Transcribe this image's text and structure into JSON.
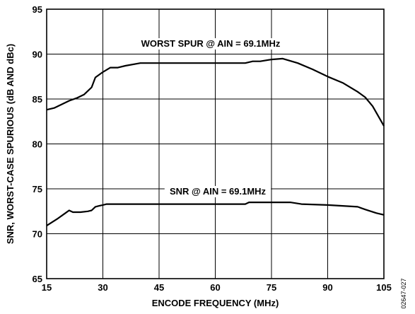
{
  "chart_data": {
    "type": "line",
    "title": "",
    "xlabel": "ENCODE FREQUENCY (MHz)",
    "ylabel": "SNR, WORST-CASE SPURIOUS (dB AND dBc)",
    "xlim": [
      15,
      105
    ],
    "ylim": [
      65,
      95
    ],
    "x_ticks": [
      15,
      30,
      45,
      60,
      75,
      90,
      105
    ],
    "y_ticks": [
      65,
      70,
      75,
      80,
      85,
      90,
      95
    ],
    "grid": true,
    "series": [
      {
        "name": "WORST SPUR @ AIN = 69.1MHz",
        "x": [
          15,
          17,
          19,
          21,
          23,
          25,
          27,
          28,
          30,
          32,
          34,
          36,
          40,
          45,
          50,
          60,
          68,
          70,
          72,
          75,
          78,
          82,
          86,
          90,
          94,
          98,
          100,
          102,
          105
        ],
        "y": [
          83.8,
          84.0,
          84.4,
          84.8,
          85.1,
          85.5,
          86.3,
          87.4,
          88.0,
          88.5,
          88.5,
          88.7,
          89.0,
          89.0,
          89.0,
          89.0,
          89.0,
          89.2,
          89.2,
          89.4,
          89.5,
          89.0,
          88.3,
          87.5,
          86.8,
          85.8,
          85.2,
          84.2,
          82.0
        ]
      },
      {
        "name": "SNR @ AIN = 69.1MHz",
        "x": [
          15,
          18,
          20,
          21,
          22,
          24,
          26,
          27,
          28,
          29,
          30,
          31,
          40,
          50,
          60,
          68,
          69,
          80,
          83,
          90,
          98,
          100,
          103,
          105
        ],
        "y": [
          70.9,
          71.7,
          72.3,
          72.6,
          72.4,
          72.4,
          72.5,
          72.6,
          73.0,
          73.1,
          73.2,
          73.3,
          73.3,
          73.3,
          73.3,
          73.3,
          73.5,
          73.5,
          73.3,
          73.2,
          73.0,
          72.7,
          72.3,
          72.1
        ]
      }
    ],
    "annotations": [
      "WORST SPUR @ AIN = 69.1MHz",
      "SNR @ AIN = 69.1MHz"
    ],
    "figure_code": "02647-027"
  }
}
